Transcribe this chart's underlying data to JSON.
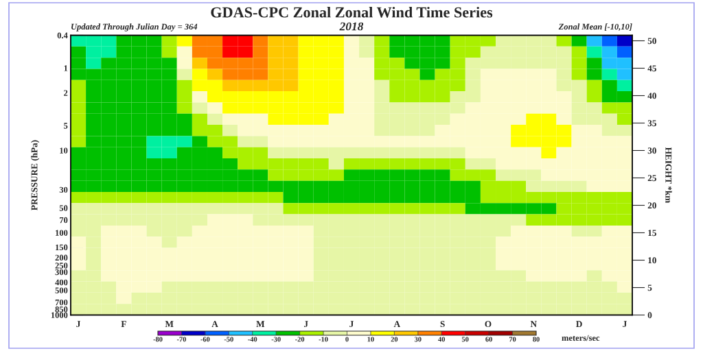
{
  "chart_data": {
    "type": "heatmap",
    "title": "GDAS-CPC Zonal Zonal Wind Time Series",
    "subtitle": "2018",
    "annotations": [
      "Updated Through Julian Day = 364",
      "Zonal Mean [-10,10]"
    ],
    "ylabel": "PRESSURE (hPa)",
    "y2label": "HEIGHT *km",
    "clabel": "meters/sec",
    "categories": [
      "J",
      null,
      null,
      "F",
      null,
      null,
      "M",
      null,
      null,
      "A",
      null,
      null,
      "M",
      null,
      null,
      "J",
      null,
      null,
      "J",
      null,
      null,
      "A",
      null,
      null,
      "S",
      null,
      null,
      "O",
      null,
      null,
      "N",
      null,
      null,
      "D",
      null,
      null,
      "J"
    ],
    "log": "y",
    "ylim": [
      1000,
      0.4
    ],
    "yticks": [
      0.4,
      1,
      2,
      5,
      10,
      30,
      50,
      70,
      100,
      150,
      200,
      250,
      300,
      400,
      500,
      700,
      850,
      1000
    ],
    "y2lim": [
      0,
      51
    ],
    "y2ticks": [
      0,
      5,
      10,
      15,
      20,
      25,
      30,
      35,
      40,
      45,
      50
    ],
    "clim": [
      -80,
      80
    ],
    "cticks": [
      -80,
      -70,
      -60,
      -50,
      -40,
      -30,
      -20,
      -10,
      0,
      10,
      20,
      30,
      40,
      50,
      60,
      70,
      80
    ],
    "colors": [
      "#9900cc",
      "#0000c8",
      "#0060ff",
      "#20c0ff",
      "#00f0a0",
      "#00c000",
      "#aaf000",
      "#e6f6a6",
      "#fdfbcc",
      "#ffff00",
      "#ffc800",
      "#ff8000",
      "#ff0000",
      "#c80000",
      "#a00000",
      "#a07830"
    ],
    "cells": [
      [
        -35,
        -35,
        -35,
        -25,
        -25,
        -25,
        -15,
        15,
        35,
        35,
        45,
        45,
        35,
        25,
        25,
        15,
        15,
        15,
        5,
        -5,
        -15,
        -25,
        -25,
        -25,
        -25,
        -15,
        -15,
        -15,
        -5,
        -5,
        -5,
        -5,
        -15,
        -25,
        -45,
        -55,
        -65
      ],
      [
        -25,
        -35,
        -35,
        -25,
        -25,
        -25,
        -15,
        5,
        35,
        35,
        45,
        45,
        35,
        25,
        25,
        15,
        15,
        15,
        5,
        -5,
        -15,
        -25,
        -25,
        -25,
        -25,
        -15,
        -15,
        -5,
        -5,
        -5,
        -5,
        -5,
        -5,
        -15,
        -35,
        -45,
        -55
      ],
      [
        -25,
        -35,
        -25,
        -25,
        -25,
        -25,
        -25,
        5,
        25,
        35,
        35,
        35,
        35,
        25,
        25,
        15,
        15,
        15,
        5,
        5,
        -15,
        -15,
        -25,
        -25,
        -25,
        -15,
        -5,
        -5,
        -5,
        -5,
        -5,
        -5,
        -5,
        -15,
        -25,
        -45,
        -45
      ],
      [
        -25,
        -25,
        -25,
        -25,
        -25,
        -25,
        -25,
        -5,
        15,
        25,
        35,
        35,
        35,
        25,
        25,
        15,
        15,
        15,
        5,
        5,
        -15,
        -15,
        -15,
        -25,
        -15,
        -15,
        -5,
        5,
        5,
        5,
        5,
        5,
        -5,
        -15,
        -25,
        -35,
        -45
      ],
      [
        -15,
        -25,
        -25,
        -25,
        -25,
        -25,
        -25,
        -15,
        15,
        15,
        25,
        25,
        25,
        25,
        25,
        15,
        15,
        15,
        5,
        5,
        -5,
        -15,
        -15,
        -15,
        -15,
        -15,
        -5,
        5,
        5,
        5,
        5,
        5,
        -5,
        -5,
        -15,
        -25,
        -35
      ],
      [
        -15,
        -25,
        -25,
        -25,
        -25,
        -25,
        -25,
        -15,
        5,
        15,
        15,
        15,
        15,
        15,
        15,
        15,
        15,
        15,
        5,
        5,
        -5,
        -15,
        -15,
        -15,
        -15,
        -5,
        -5,
        5,
        5,
        5,
        5,
        5,
        5,
        -5,
        -15,
        -25,
        -25
      ],
      [
        -15,
        -25,
        -25,
        -25,
        -25,
        -25,
        -25,
        -15,
        -5,
        5,
        15,
        15,
        15,
        15,
        15,
        15,
        15,
        15,
        5,
        5,
        -5,
        -5,
        -5,
        -5,
        -5,
        -5,
        5,
        5,
        5,
        5,
        5,
        5,
        5,
        -5,
        -5,
        -15,
        -15
      ],
      [
        -15,
        -25,
        -25,
        -25,
        -25,
        -25,
        -25,
        -25,
        -15,
        -5,
        5,
        5,
        5,
        15,
        15,
        15,
        15,
        5,
        5,
        5,
        -5,
        -5,
        -5,
        -5,
        -5,
        5,
        5,
        5,
        5,
        5,
        15,
        15,
        5,
        -5,
        -5,
        -5,
        -15
      ],
      [
        -15,
        -25,
        -25,
        -25,
        -25,
        -25,
        -25,
        -25,
        -15,
        -15,
        -5,
        5,
        5,
        5,
        5,
        5,
        5,
        5,
        5,
        5,
        -5,
        -5,
        -5,
        -5,
        5,
        5,
        5,
        5,
        5,
        15,
        15,
        15,
        15,
        5,
        5,
        -5,
        -5
      ],
      [
        -15,
        -25,
        -25,
        -25,
        -25,
        -35,
        -35,
        -35,
        -25,
        -15,
        -15,
        -5,
        -5,
        5,
        5,
        5,
        5,
        5,
        5,
        5,
        5,
        5,
        5,
        5,
        5,
        5,
        5,
        5,
        5,
        15,
        15,
        15,
        15,
        5,
        5,
        5,
        5
      ],
      [
        -25,
        -25,
        -25,
        -25,
        -25,
        -35,
        -35,
        -25,
        -25,
        -25,
        -15,
        -15,
        -15,
        -5,
        -5,
        -5,
        -5,
        -5,
        -5,
        -5,
        -5,
        -5,
        -5,
        -5,
        -5,
        -5,
        5,
        5,
        5,
        5,
        5,
        15,
        5,
        5,
        5,
        5,
        5
      ],
      [
        -25,
        -25,
        -25,
        -25,
        -25,
        -25,
        -25,
        -25,
        -25,
        -25,
        -25,
        -15,
        -15,
        -15,
        -15,
        -15,
        -15,
        -5,
        -15,
        -15,
        -15,
        -15,
        -15,
        -15,
        -15,
        -15,
        -5,
        -5,
        5,
        5,
        5,
        5,
        5,
        5,
        5,
        5,
        5
      ],
      [
        -25,
        -25,
        -25,
        -25,
        -25,
        -25,
        -25,
        -25,
        -25,
        -25,
        -25,
        -25,
        -25,
        -15,
        -15,
        -15,
        -15,
        -15,
        -25,
        -25,
        -25,
        -25,
        -25,
        -25,
        -25,
        -15,
        -15,
        -15,
        -5,
        -5,
        -5,
        5,
        5,
        5,
        5,
        5,
        5
      ],
      [
        -25,
        -25,
        -25,
        -25,
        -25,
        -25,
        -25,
        -25,
        -25,
        -25,
        -25,
        -25,
        -25,
        -25,
        -25,
        -25,
        -25,
        -25,
        -25,
        -25,
        -25,
        -25,
        -25,
        -25,
        -25,
        -25,
        -25,
        -15,
        -15,
        -15,
        -5,
        -5,
        -5,
        -5,
        5,
        5,
        5
      ],
      [
        -15,
        -15,
        -15,
        -15,
        -15,
        -15,
        -15,
        -15,
        -15,
        -15,
        -15,
        -15,
        -15,
        -15,
        -25,
        -25,
        -25,
        -25,
        -25,
        -25,
        -25,
        -25,
        -25,
        -25,
        -25,
        -25,
        -25,
        -15,
        -15,
        -15,
        -15,
        -15,
        -15,
        -15,
        -15,
        -15,
        -15
      ],
      [
        -5,
        -5,
        -5,
        -5,
        -5,
        -5,
        -5,
        -5,
        -5,
        -5,
        -5,
        -5,
        -5,
        -5,
        -15,
        -15,
        -15,
        -15,
        -15,
        -15,
        -15,
        -15,
        -15,
        -15,
        -15,
        -15,
        -25,
        -25,
        -25,
        -25,
        -25,
        -25,
        -15,
        -15,
        -15,
        -15,
        -15
      ],
      [
        -5,
        -5,
        -5,
        -5,
        -5,
        -5,
        -5,
        -5,
        -5,
        5,
        5,
        5,
        -5,
        -5,
        -5,
        -5,
        -5,
        -5,
        -5,
        -5,
        -5,
        -5,
        -5,
        -5,
        -5,
        -5,
        -5,
        -5,
        -5,
        -5,
        -15,
        -15,
        -15,
        -15,
        -15,
        -15,
        -15
      ],
      [
        -5,
        -5,
        5,
        5,
        5,
        -5,
        -5,
        -5,
        5,
        5,
        5,
        5,
        5,
        5,
        5,
        5,
        -5,
        -5,
        -5,
        -5,
        -5,
        -5,
        -5,
        -5,
        -5,
        -5,
        -5,
        -5,
        -5,
        5,
        5,
        5,
        5,
        -5,
        -5,
        5,
        5
      ],
      [
        5,
        -5,
        5,
        5,
        5,
        5,
        -5,
        5,
        5,
        5,
        5,
        5,
        5,
        5,
        5,
        5,
        -5,
        -5,
        -5,
        -5,
        -5,
        -5,
        -5,
        -5,
        -5,
        -5,
        -5,
        -5,
        5,
        5,
        5,
        5,
        5,
        5,
        5,
        5,
        5
      ],
      [
        5,
        -5,
        5,
        5,
        5,
        5,
        5,
        5,
        5,
        5,
        5,
        5,
        5,
        5,
        5,
        5,
        -5,
        -5,
        -5,
        -5,
        -5,
        -5,
        -5,
        -5,
        -5,
        -5,
        -5,
        -5,
        5,
        5,
        5,
        5,
        5,
        5,
        5,
        5,
        5
      ],
      [
        5,
        -5,
        5,
        5,
        5,
        5,
        5,
        5,
        5,
        5,
        5,
        5,
        5,
        5,
        5,
        5,
        -5,
        -5,
        -5,
        -5,
        -5,
        -5,
        -5,
        -5,
        -5,
        -5,
        -5,
        -5,
        5,
        5,
        5,
        5,
        5,
        5,
        5,
        5,
        5
      ],
      [
        -5,
        -5,
        5,
        5,
        5,
        5,
        5,
        5,
        5,
        5,
        5,
        5,
        5,
        5,
        5,
        5,
        -5,
        -5,
        -5,
        -5,
        -5,
        -5,
        -5,
        -5,
        -5,
        -5,
        -5,
        -5,
        -5,
        -5,
        5,
        5,
        5,
        5,
        -5,
        5,
        5
      ],
      [
        -5,
        -5,
        -5,
        5,
        5,
        5,
        -5,
        -5,
        -5,
        -5,
        -5,
        -5,
        -5,
        -5,
        -5,
        -5,
        -5,
        -5,
        -5,
        -5,
        -5,
        -5,
        -5,
        -5,
        -5,
        -5,
        -5,
        -5,
        -5,
        -5,
        -5,
        -5,
        -5,
        -5,
        -5,
        -5,
        5
      ],
      [
        -5,
        -5,
        -5,
        5,
        -5,
        -5,
        -5,
        -5,
        -5,
        -5,
        -5,
        -5,
        -5,
        -5,
        -5,
        -5,
        -5,
        -5,
        -5,
        -5,
        -5,
        -5,
        -5,
        -5,
        -5,
        -5,
        -5,
        -5,
        -5,
        -5,
        -5,
        -5,
        -5,
        -5,
        -5,
        -5,
        -5
      ],
      [
        -5,
        -5,
        -5,
        -5,
        -5,
        -5,
        -5,
        -5,
        -5,
        -5,
        -5,
        -5,
        -5,
        -5,
        -5,
        -5,
        -5,
        -5,
        -5,
        -5,
        -5,
        -5,
        -5,
        -5,
        -5,
        -5,
        -5,
        -5,
        -5,
        -5,
        -5,
        -5,
        -5,
        -5,
        -5,
        -5,
        -5
      ]
    ]
  }
}
